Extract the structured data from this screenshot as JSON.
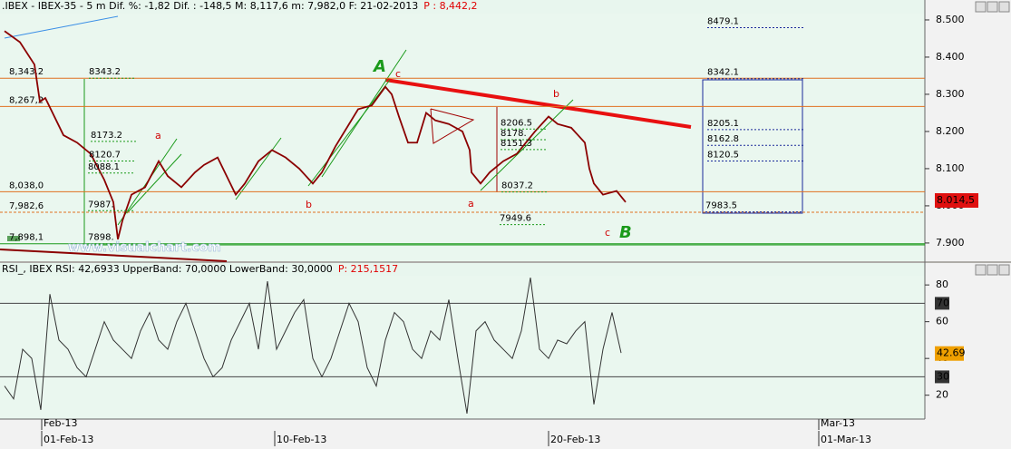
{
  "chart_data": [
    {
      "type": "line",
      "title": ".IBEX - IBEX-35 -  5 m Dif. %: -1,82 Dif. : -148,5 M: 8,117,6 m: 7,982,0 F: 21-02-2013",
      "title_value": "P : 8,442,2",
      "watermark": "www.visualchart.com",
      "x": [
        0.5,
        2.2,
        3.8,
        4.4,
        5,
        6,
        7,
        8.5,
        10,
        11.5,
        12.5,
        13,
        13.5,
        14.5,
        16,
        17.5,
        18.5,
        20,
        21.5,
        22.5,
        24,
        25,
        26,
        27,
        28.5,
        30,
        31.5,
        33,
        34.5,
        35.5,
        37,
        38.5,
        39.5,
        41,
        42.5,
        43.2,
        44,
        45,
        46,
        47,
        48,
        49.5,
        51,
        51.8,
        52,
        53,
        54,
        55.5,
        57,
        59,
        60.5,
        61.5,
        63,
        64.5,
        65,
        65.5,
        66.5,
        68,
        69
      ],
      "series": [
        {
          "name": "IBEX-35",
          "color": "#8b0000",
          "values": [
            8470,
            8440,
            8380,
            8280,
            8290,
            8240,
            8190,
            8170,
            8140,
            8070,
            8010,
            7910,
            7960,
            8030,
            8050,
            8120,
            8080,
            8050,
            8090,
            8110,
            8130,
            8080,
            8030,
            8060,
            8120,
            8150,
            8130,
            8100,
            8060,
            8090,
            8160,
            8220,
            8260,
            8270,
            8320,
            8300,
            8240,
            8170,
            8170,
            8250,
            8230,
            8220,
            8200,
            8150,
            8090,
            8060,
            8090,
            8120,
            8140,
            8200,
            8240,
            8220,
            8210,
            8170,
            8100,
            8060,
            8030,
            8040,
            8010
          ]
        }
      ],
      "xlim": [
        0,
        102
      ],
      "ylim": [
        7851,
        8517
      ],
      "yticks": [
        {
          "value": 8500,
          "label": "8.500"
        },
        {
          "value": 8400,
          "label": "8.400"
        },
        {
          "value": 8300,
          "label": "8.300"
        },
        {
          "value": 8200,
          "label": "8.200"
        },
        {
          "value": 8100,
          "label": "8.100"
        },
        {
          "value": 8000,
          "label": "8.000"
        },
        {
          "value": 7900,
          "label": "7.900"
        }
      ],
      "current": {
        "value": 8014.5,
        "label": "8.014,5"
      },
      "levels": [
        {
          "value": 8343.2,
          "label": "8,343,2"
        },
        {
          "value": 8267.2,
          "label": "8,267,2"
        },
        {
          "value": 8038,
          "label": "8,038,0"
        },
        {
          "value": 7982.6,
          "label": "7,982,6"
        },
        {
          "value": 7898.1,
          "label": "7,898,1"
        }
      ],
      "annotations": [
        8479.1,
        8343.2,
        8342.1,
        8206.5,
        8205.1,
        {
          "value": 8178,
          "label": "8178."
        },
        8173.2,
        8162.8,
        8151.3,
        8120.7,
        8120.5,
        8088.1,
        8037.2,
        {
          "value": 7987,
          "label": "7987."
        },
        7983.5,
        7949.6,
        {
          "value": 7898,
          "label": "7898."
        }
      ],
      "wave_labels": [
        "A",
        "B",
        "a",
        "b",
        "c",
        "a",
        "b",
        "c"
      ]
    },
    {
      "type": "line",
      "title": "RSI_, IBEX RSI: 42,6933 UpperBand: 70,0000 LowerBand: 30,0000",
      "title_value": "P: 215,1517",
      "x": [
        0.5,
        1.5,
        2.5,
        3.5,
        4.5,
        5.5,
        6.5,
        7.5,
        8.5,
        9.5,
        10.5,
        11.5,
        12.5,
        13.5,
        14.5,
        15.5,
        16.5,
        17.5,
        18.5,
        19.5,
        20.5,
        21.5,
        22.5,
        23.5,
        24.5,
        25.5,
        26.5,
        27.5,
        28.5,
        29.5,
        30.5,
        31.5,
        32.5,
        33.5,
        34.5,
        35.5,
        36.5,
        37.5,
        38.5,
        39.5,
        40.5,
        41.5,
        42.5,
        43.5,
        44.5,
        45.5,
        46.5,
        47.5,
        48.5,
        49.5,
        50.5,
        51.5,
        52.5,
        53.5,
        54.5,
        55.5,
        56.5,
        57.5,
        58.5,
        59.5,
        60.5,
        61.5,
        62.5,
        63.5,
        64.5,
        65.5,
        66.5,
        67.5,
        68.5
      ],
      "series": [
        {
          "name": "RSI",
          "color": "#333333",
          "values": [
            25,
            18,
            45,
            40,
            12,
            75,
            50,
            45,
            35,
            30,
            45,
            60,
            50,
            45,
            40,
            55,
            65,
            50,
            45,
            60,
            70,
            55,
            40,
            30,
            35,
            50,
            60,
            70,
            45,
            82,
            45,
            55,
            65,
            72,
            40,
            30,
            40,
            55,
            70,
            60,
            35,
            25,
            50,
            65,
            60,
            45,
            40,
            55,
            50,
            72,
            40,
            10,
            55,
            60,
            50,
            45,
            40,
            55,
            84,
            45,
            40,
            50,
            48,
            55,
            60,
            15,
            45,
            65,
            43
          ]
        }
      ],
      "xlim": [
        0,
        102
      ],
      "ylim": [
        8,
        85
      ],
      "yticks": [
        80,
        60,
        40,
        20
      ],
      "bands": [
        70,
        30
      ],
      "current": 42.69,
      "xticks": [
        {
          "value": 4.6,
          "label": "01-Feb-13"
        },
        {
          "value": 30.3,
          "label": "10-Feb-13"
        },
        {
          "value": 60.5,
          "label": "20-Feb-13"
        },
        {
          "value": 90.3,
          "label": "01-Mar-13"
        }
      ],
      "month_ticks": [
        {
          "value": 4.6,
          "label": "Feb-13"
        },
        {
          "value": 90.3,
          "label": "Mar-13"
        }
      ]
    }
  ]
}
